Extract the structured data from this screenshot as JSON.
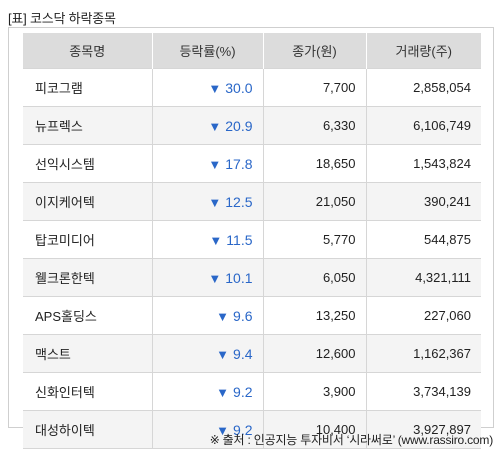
{
  "title": "[표] 코스닥 하락종목",
  "columns": [
    "종목명",
    "등락률(%)",
    "종가(원)",
    "거래량(주)"
  ],
  "down_arrow": "▼",
  "rows": [
    {
      "name": "피코그램",
      "change": "30.0",
      "close": "7,700",
      "volume": "2,858,054"
    },
    {
      "name": "뉴프렉스",
      "change": "20.9",
      "close": "6,330",
      "volume": "6,106,749"
    },
    {
      "name": "선익시스템",
      "change": "17.8",
      "close": "18,650",
      "volume": "1,543,824"
    },
    {
      "name": "이지케어텍",
      "change": "12.5",
      "close": "21,050",
      "volume": "390,241"
    },
    {
      "name": "탑코미디어",
      "change": "11.5",
      "close": "5,770",
      "volume": "544,875"
    },
    {
      "name": "웰크론한텍",
      "change": "10.1",
      "close": "6,050",
      "volume": "4,321,111"
    },
    {
      "name": "APS홀딩스",
      "change": "9.6",
      "close": "13,250",
      "volume": "227,060"
    },
    {
      "name": "맥스트",
      "change": "9.4",
      "close": "12,600",
      "volume": "1,162,367"
    },
    {
      "name": "신화인터텍",
      "change": "9.2",
      "close": "3,900",
      "volume": "3,734,139"
    },
    {
      "name": "대성하이텍",
      "change": "9.2",
      "close": "10,400",
      "volume": "3,927,897"
    }
  ],
  "accent_color": "#2a67c8",
  "source": "※ 출처 : 인공지능 투자비서 ‘시라써로’ (www.rassiro.com)"
}
